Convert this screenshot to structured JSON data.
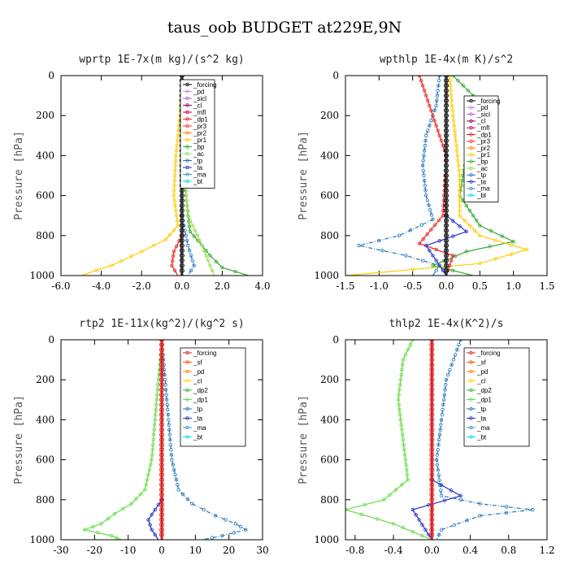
{
  "figure_title": "taus_oob  BUDGET at229E,9N",
  "colors": {
    "forcing": "#000000",
    "pd": "#cc88dd",
    "sicl": "#aa66cc",
    "cl": "#880066",
    "mfl": "#cc0044",
    "dp1": "#ee2222",
    "dp2": "#33bb33",
    "pr3": "#ff3333",
    "pr2": "#ff8800",
    "pr1": "#ffcc00",
    "bp": "#33aa33",
    "ac": "#99dd55",
    "tp": "#2277bb",
    "ta": "#2233cc",
    "ma": "#3399cc",
    "bt": "#00ddee",
    "sf": "#ff5500",
    "cl_y": "#ffdd00",
    "dp1_g": "#66dd44"
  },
  "chart_data": [
    {
      "type": "line",
      "title": "wprtp  1E-7x(m kg)/(s^2 kg)",
      "ylabel": "Pressure [hPa]",
      "xlim": [
        -6,
        4
      ],
      "ylim": [
        1000,
        0
      ],
      "xticks": [
        "-6.0",
        "-4.0",
        "-2.0",
        "0.0",
        "2.0",
        "4.0"
      ],
      "yticks": [
        "0",
        "200",
        "400",
        "600",
        "800",
        "1000"
      ],
      "legend": [
        "_forcing",
        "_pd",
        "_sicl",
        "_cl",
        "_mfl",
        "_dp1",
        "_pr3",
        "_pr2",
        "_pr1",
        "_bp",
        "_ac",
        "_tp",
        "_ta",
        "_ma",
        "_bt"
      ],
      "series": [
        {
          "name": "_pr1",
          "color": "#ffcc00",
          "points": [
            [
              0.0,
              0
            ],
            [
              -0.1,
              200
            ],
            [
              -0.3,
              400
            ],
            [
              -0.4,
              600
            ],
            [
              -0.2,
              750
            ],
            [
              -0.8,
              820
            ],
            [
              -2.0,
              880
            ],
            [
              -3.5,
              950
            ],
            [
              -5.0,
              1000
            ]
          ]
        },
        {
          "name": "_bp",
          "color": "#33aa33",
          "points": [
            [
              0.1,
              400
            ],
            [
              0.2,
              600
            ],
            [
              0.4,
              780
            ],
            [
              1.0,
              850
            ],
            [
              1.4,
              900
            ],
            [
              2.0,
              960
            ],
            [
              3.3,
              1000
            ]
          ]
        },
        {
          "name": "_ac",
          "color": "#99dd55",
          "points": [
            [
              0.1,
              500
            ],
            [
              0.3,
              700
            ],
            [
              1.0,
              850
            ],
            [
              1.4,
              950
            ],
            [
              1.6,
              1000
            ]
          ]
        },
        {
          "name": "_dp1",
          "color": "#ee2222",
          "points": [
            [
              0,
              800
            ],
            [
              -0.4,
              880
            ],
            [
              -0.5,
              950
            ],
            [
              -0.2,
              1000
            ]
          ]
        },
        {
          "name": "_tp",
          "color": "#2277bb",
          "points": [
            [
              0,
              700
            ],
            [
              0.3,
              850
            ],
            [
              0.6,
              950
            ],
            [
              0.3,
              1000
            ]
          ]
        },
        {
          "name": "_forcing",
          "color": "#000000",
          "points": [
            [
              0,
              0
            ],
            [
              0,
              1000
            ]
          ]
        }
      ]
    },
    {
      "type": "line",
      "title": "wpthlp  1E-4x(m K)/s^2",
      "ylabel": "Pressure [hPa]",
      "xlim": [
        -1.5,
        1.5
      ],
      "ylim": [
        1000,
        0
      ],
      "xticks": [
        "-1.5",
        "-1.0",
        "-0.5",
        "0.0",
        "0.5",
        "1.0",
        "1.5"
      ],
      "yticks": [
        "0",
        "200",
        "400",
        "600",
        "800",
        "1000"
      ],
      "legend": [
        "_forcing",
        "_pd",
        "_sicl",
        "_cl",
        "_mfl",
        "_dp1",
        "_pr3",
        "_pr2",
        "_pr1",
        "_bp",
        "_ac",
        "_tp",
        "_ta",
        "_ma",
        "_bt"
      ],
      "series": [
        {
          "name": "_tp",
          "color": "#2277bb",
          "points": [
            [
              -0.1,
              0
            ],
            [
              -0.15,
              150
            ],
            [
              -0.3,
              300
            ],
            [
              -0.35,
              450
            ],
            [
              -0.3,
              600
            ],
            [
              -0.2,
              720
            ],
            [
              -0.7,
              800
            ],
            [
              -1.3,
              850
            ],
            [
              -0.6,
              900
            ],
            [
              -0.1,
              950
            ],
            [
              -0.2,
              1000
            ]
          ]
        },
        {
          "name": "_bp",
          "color": "#33aa33",
          "points": [
            [
              0.1,
              0
            ],
            [
              0.4,
              100
            ],
            [
              0.5,
              200
            ],
            [
              0.3,
              400
            ],
            [
              0.2,
              600
            ],
            [
              0.5,
              750
            ],
            [
              1.0,
              830
            ],
            [
              0.3,
              880
            ],
            [
              -0.2,
              950
            ],
            [
              0.4,
              1000
            ]
          ]
        },
        {
          "name": "_pr1",
          "color": "#ffcc00",
          "points": [
            [
              0.05,
              0
            ],
            [
              0.1,
              200
            ],
            [
              0.2,
              500
            ],
            [
              0.2,
              700
            ],
            [
              0.5,
              800
            ],
            [
              1.2,
              870
            ],
            [
              0.5,
              940
            ],
            [
              -1.5,
              1000
            ]
          ]
        },
        {
          "name": "_dp1",
          "color": "#ee2222",
          "points": [
            [
              -0.4,
              0
            ],
            [
              -0.3,
              100
            ],
            [
              0,
              400
            ],
            [
              -0.05,
              700
            ],
            [
              -0.4,
              840
            ],
            [
              0.1,
              900
            ],
            [
              0,
              1000
            ]
          ]
        },
        {
          "name": "_ta",
          "color": "#2233cc",
          "points": [
            [
              0,
              700
            ],
            [
              0.3,
              780
            ],
            [
              -0.3,
              850
            ],
            [
              0,
              1000
            ]
          ]
        },
        {
          "name": "_forcing",
          "color": "#000000",
          "points": [
            [
              0,
              0
            ],
            [
              0,
              1000
            ]
          ]
        }
      ]
    },
    {
      "type": "line",
      "title": "rtp2  1E-11x(kg^2)/(kg^2 s)",
      "ylabel": "Pressure [hPa]",
      "xlim": [
        -30,
        30
      ],
      "ylim": [
        1000,
        0
      ],
      "xticks": [
        "-30",
        "-20",
        "-10",
        "0",
        "10",
        "20",
        "30"
      ],
      "yticks": [
        "0",
        "200",
        "400",
        "600",
        "800",
        "1000"
      ],
      "legend": [
        "_forcing",
        "_sf",
        "_pd",
        "_cl",
        "_dp2",
        "_dp1",
        "_tp",
        "_ta",
        "_ma",
        "_bt"
      ],
      "series": [
        {
          "name": "_dp1",
          "color": "#66dd44",
          "points": [
            [
              0,
              0
            ],
            [
              -1,
              200
            ],
            [
              -2,
              400
            ],
            [
              -3,
              600
            ],
            [
              -5,
              750
            ],
            [
              -9,
              820
            ],
            [
              -14,
              870
            ],
            [
              -18,
              920
            ],
            [
              -23,
              950
            ],
            [
              -15,
              980
            ],
            [
              -12,
              1000
            ]
          ]
        },
        {
          "name": "_tp",
          "color": "#2277bb",
          "points": [
            [
              0,
              0
            ],
            [
              1,
              200
            ],
            [
              2,
              400
            ],
            [
              3,
              600
            ],
            [
              5,
              750
            ],
            [
              9,
              820
            ],
            [
              16,
              880
            ],
            [
              22,
              920
            ],
            [
              25,
              950
            ],
            [
              18,
              980
            ],
            [
              12,
              1000
            ]
          ]
        },
        {
          "name": "_ta",
          "color": "#2233cc",
          "points": [
            [
              0,
              800
            ],
            [
              -2,
              850
            ],
            [
              -4,
              900
            ],
            [
              -3,
              950
            ],
            [
              -1,
              1000
            ]
          ]
        },
        {
          "name": "_forcing",
          "color": "#dd2222",
          "points": [
            [
              0,
              0
            ],
            [
              0,
              1000
            ]
          ]
        }
      ]
    },
    {
      "type": "line",
      "title": "thlp2  1E-4x(K^2)/s",
      "ylabel": "Pressure [hPa]",
      "xlim": [
        -0.9,
        1.2
      ],
      "ylim": [
        1000,
        0
      ],
      "xticks": [
        "-0.8",
        "-0.4",
        "0.0",
        "0.4",
        "0.8",
        "1.2"
      ],
      "yticks": [
        "0",
        "200",
        "400",
        "600",
        "800",
        "1000"
      ],
      "legend": [
        "_forcing",
        "_sf",
        "_pd",
        "_cl",
        "_dp2",
        "_dp1",
        "_tp",
        "_ta",
        "_ma",
        "_bt"
      ],
      "series": [
        {
          "name": "_dp1",
          "color": "#66dd44",
          "points": [
            [
              -0.2,
              0
            ],
            [
              -0.3,
              100
            ],
            [
              -0.35,
              300
            ],
            [
              -0.3,
              500
            ],
            [
              -0.25,
              700
            ],
            [
              -0.5,
              800
            ],
            [
              -0.9,
              850
            ],
            [
              -0.4,
              920
            ],
            [
              -0.2,
              960
            ],
            [
              0,
              1000
            ]
          ]
        },
        {
          "name": "_tp",
          "color": "#2277bb",
          "points": [
            [
              0.3,
              0
            ],
            [
              0.15,
              200
            ],
            [
              0.1,
              400
            ],
            [
              0.05,
              600
            ],
            [
              0.1,
              780
            ],
            [
              0.5,
              820
            ],
            [
              1.05,
              850
            ],
            [
              0.5,
              880
            ],
            [
              0.1,
              950
            ],
            [
              0.05,
              1000
            ]
          ]
        },
        {
          "name": "_ta",
          "color": "#2233cc",
          "points": [
            [
              0,
              700
            ],
            [
              0.3,
              780
            ],
            [
              -0.2,
              850
            ],
            [
              0,
              1000
            ]
          ]
        },
        {
          "name": "_forcing",
          "color": "#dd2222",
          "points": [
            [
              0,
              0
            ],
            [
              0,
              1000
            ]
          ]
        }
      ]
    }
  ]
}
